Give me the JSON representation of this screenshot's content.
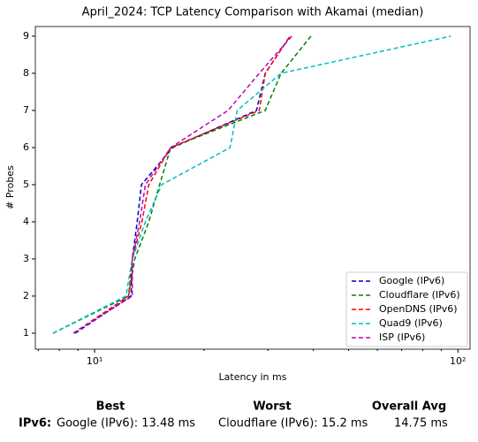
{
  "chart_data": {
    "type": "line",
    "title": "April_2024: TCP Latency Comparison with Akamai (median)",
    "xlabel": "Latency in ms",
    "ylabel": "# Probes",
    "xscale": "log",
    "xlim": [
      6.87,
      108
    ],
    "ylim": [
      0.57,
      9.26
    ],
    "xticks": [
      {
        "value": 10,
        "label": "10¹"
      },
      {
        "value": 100,
        "label": "10²"
      }
    ],
    "xminorticks": [
      7,
      8,
      9,
      20,
      30,
      40,
      50,
      60,
      70,
      80,
      90
    ],
    "yticks": [
      1,
      2,
      3,
      4,
      5,
      6,
      7,
      8,
      9
    ],
    "legend": "lower right",
    "series": [
      {
        "name": "Google (IPv6)",
        "color": "#0000bf",
        "x": [
          8.84,
          12.6,
          12.7,
          13.1,
          13.46,
          16.4,
          27.9,
          29.5,
          34.5
        ],
        "values": [
          1,
          2,
          3,
          4,
          5,
          6,
          7,
          8,
          9
        ]
      },
      {
        "name": "Cloudflare (IPv6)",
        "color": "#008000",
        "x": [
          7.68,
          12.4,
          12.9,
          14.1,
          15.1,
          16.2,
          29.5,
          32.6,
          39.4
        ],
        "values": [
          1,
          2,
          3,
          4,
          5,
          6,
          7,
          8,
          9
        ]
      },
      {
        "name": "OpenDNS (IPv6)",
        "color": "#ff0000",
        "x": [
          8.74,
          12.4,
          12.7,
          13.5,
          14.1,
          16.2,
          28.4,
          29.5,
          34.5
        ],
        "values": [
          1,
          2,
          3,
          4,
          5,
          6,
          7,
          8,
          9
        ]
      },
      {
        "name": "Quad9 (IPv6)",
        "color": "#00bfbf",
        "x": [
          7.68,
          12.2,
          12.7,
          13.8,
          15.3,
          23.6,
          24.7,
          32.6,
          95.6
        ],
        "values": [
          1,
          2,
          3,
          4,
          5,
          6,
          7,
          8,
          9
        ]
      },
      {
        "name": "ISP (IPv6)",
        "color": "#bf00bf",
        "x": [
          8.74,
          12.7,
          12.7,
          13.3,
          13.8,
          16.2,
          23.3,
          28.4,
          34.9
        ],
        "values": [
          1,
          2,
          3,
          4,
          5,
          6,
          7,
          8,
          9
        ]
      }
    ]
  },
  "summary": {
    "headers": [
      "Best",
      "Worst",
      "Overall Avg"
    ],
    "row_label": "IPv6:",
    "best": "Google (IPv6): 13.48 ms",
    "worst": "Cloudflare (IPv6): 15.2 ms",
    "avg": "14.75 ms"
  }
}
